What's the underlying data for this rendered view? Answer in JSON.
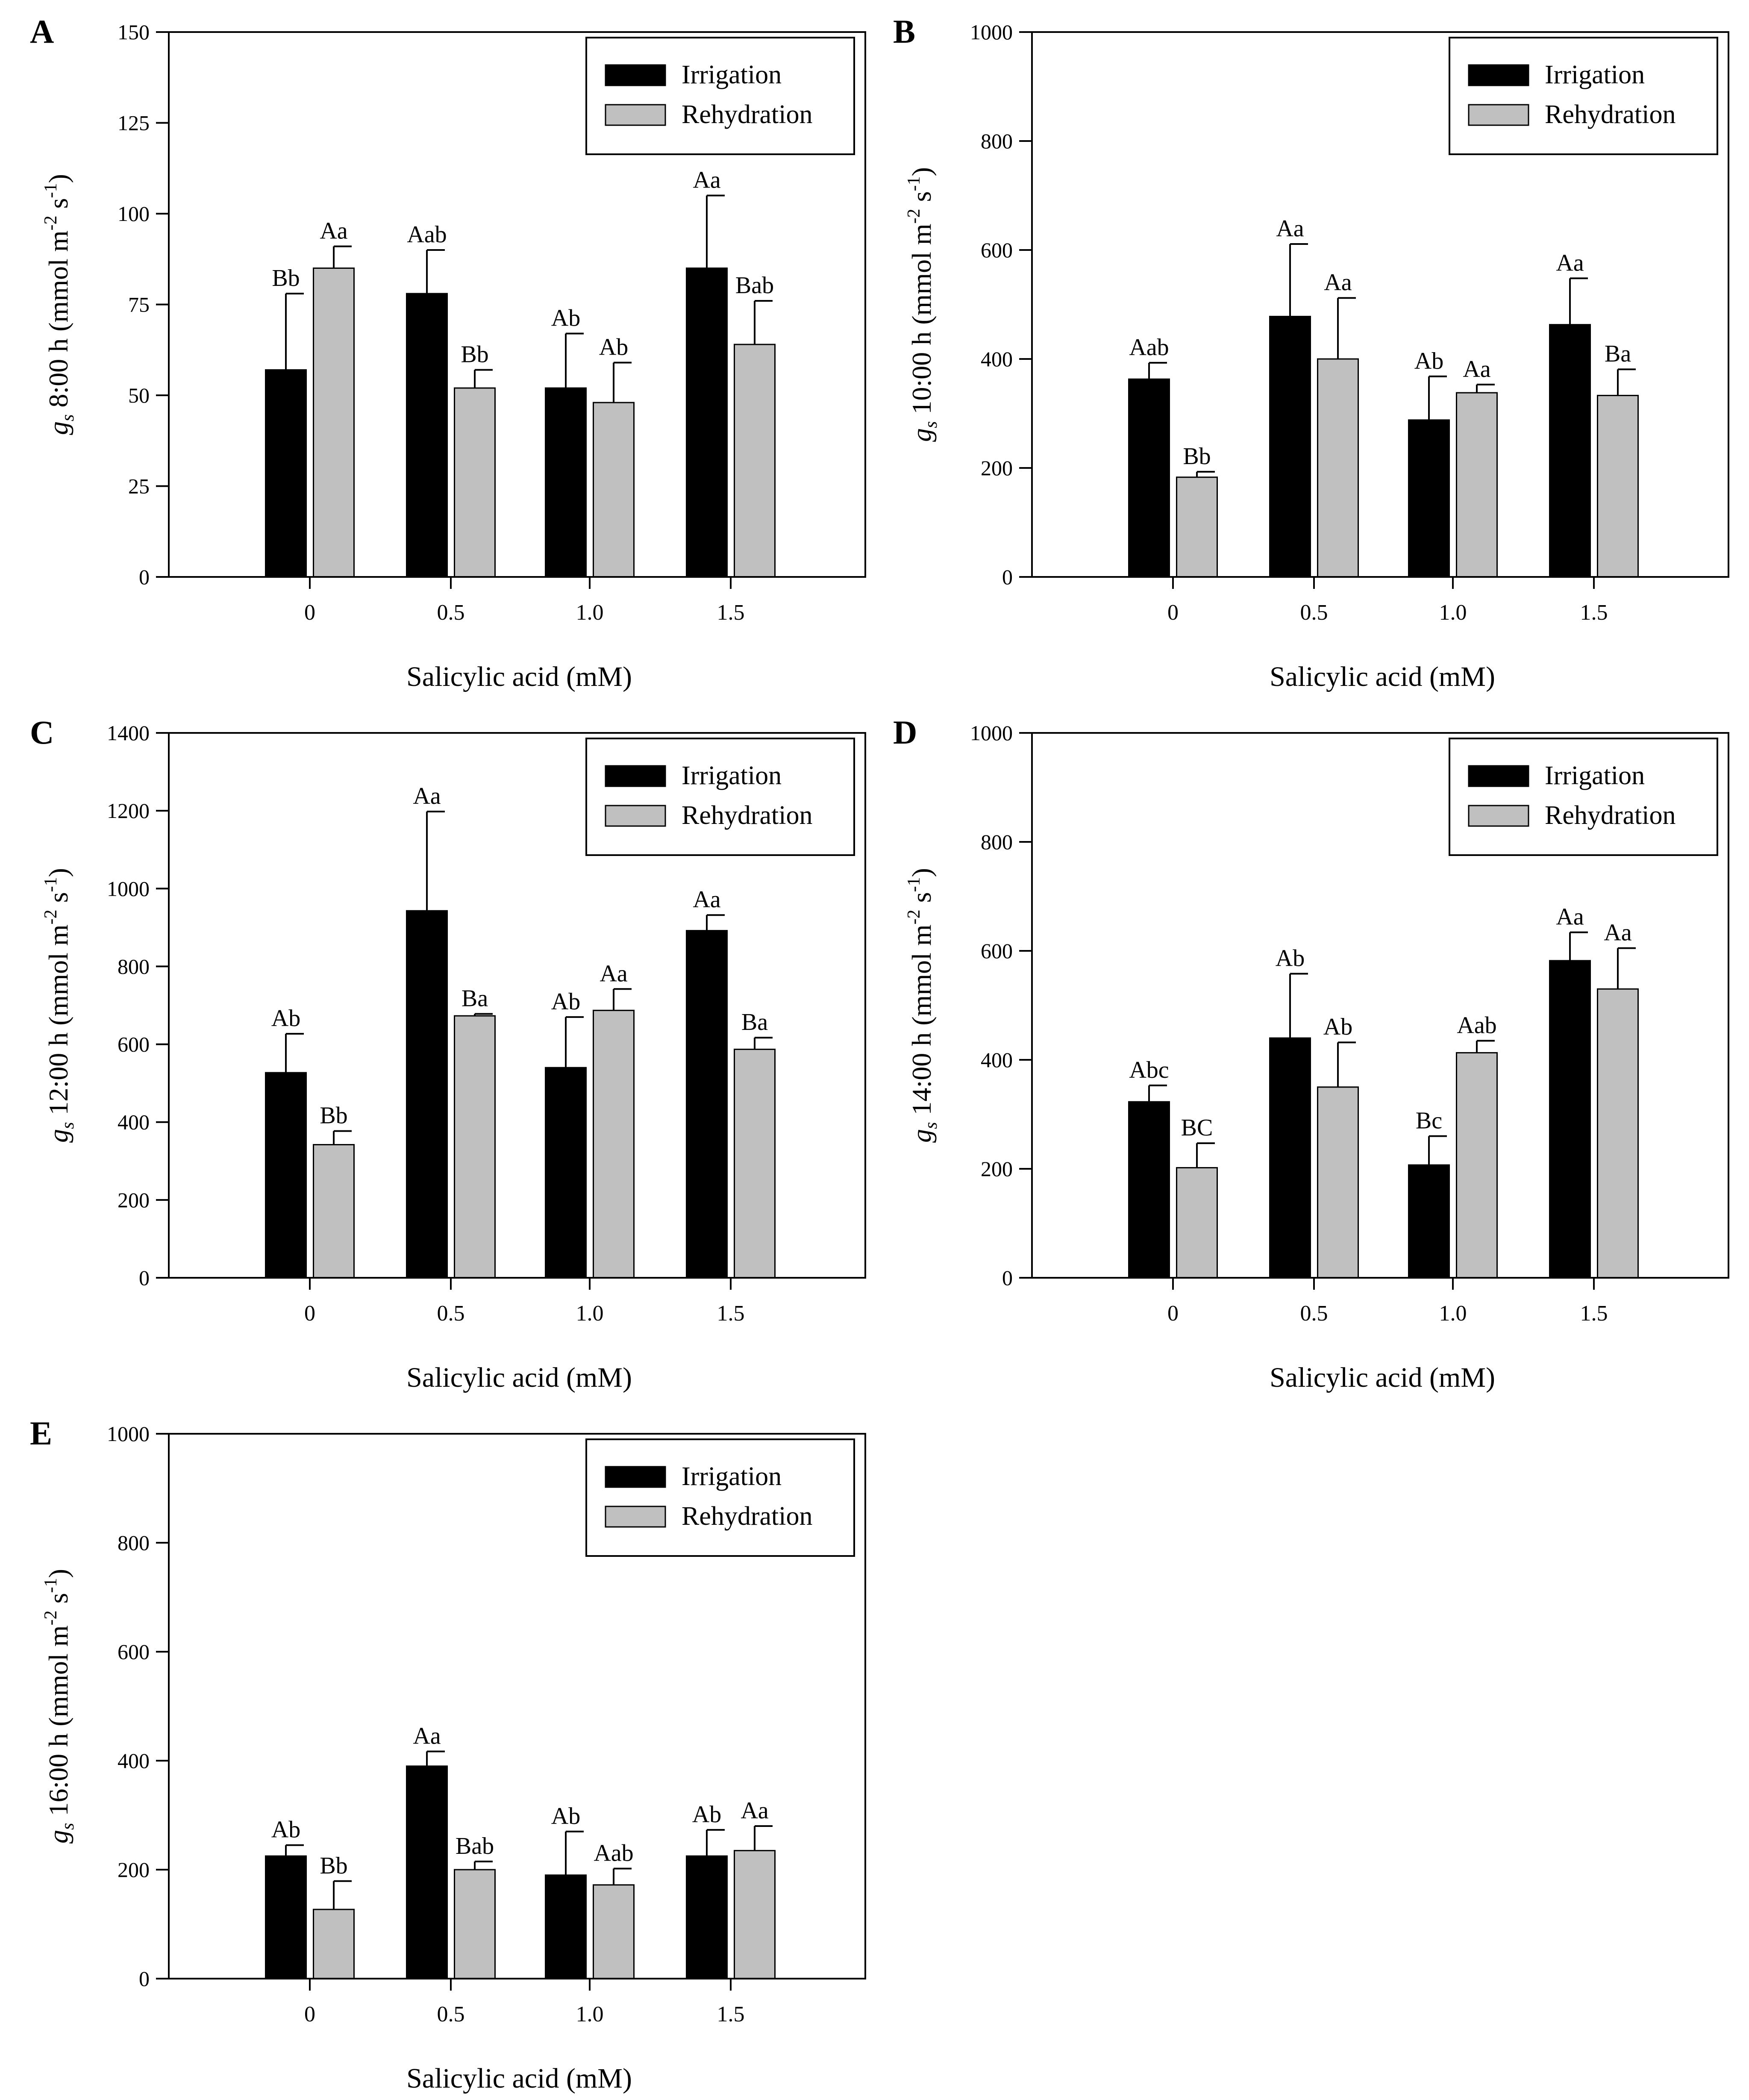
{
  "figure": {
    "legend": {
      "irrigation": "Irrigation",
      "rehydration": "Rehydration"
    },
    "colors": {
      "irrigation": "#000000",
      "rehydration": "#c0c0c0",
      "axis": "#000000"
    }
  },
  "chart_data": [
    {
      "panel": "A",
      "type": "bar",
      "ylabel": {
        "symbol": "g",
        "sub": "s",
        "time": "8:00 h",
        "unit": "(mmol m",
        "exp1": "-2",
        "mid": "s",
        "exp2": "-1",
        "close": ")"
      },
      "xlabel": "Salicylic acid (mM)",
      "categories": [
        "0",
        "0.5",
        "1.0",
        "1.5"
      ],
      "ylim": [
        0,
        150
      ],
      "yticks": [
        0,
        25,
        50,
        75,
        100,
        125,
        150
      ],
      "legend_position": "top-right",
      "series": [
        {
          "name": "Irrigation",
          "values": [
            57,
            78,
            52,
            85
          ],
          "errors": [
            21,
            12,
            15,
            20
          ],
          "labels": [
            "Bb",
            "Aab",
            "Ab",
            "Aa"
          ]
        },
        {
          "name": "Rehydration",
          "values": [
            85,
            52,
            48,
            64
          ],
          "errors": [
            6,
            5,
            11,
            12
          ],
          "labels": [
            "Aa",
            "Bb",
            "Ab",
            "Bab"
          ]
        }
      ]
    },
    {
      "panel": "B",
      "type": "bar",
      "ylabel": {
        "symbol": "g",
        "sub": "s",
        "time": "10:00 h",
        "unit": "(mmol m",
        "exp1": "-2",
        "mid": "s",
        "exp2": "-1",
        "close": ")"
      },
      "xlabel": "Salicylic acid (mM)",
      "categories": [
        "0",
        "0.5",
        "1.0",
        "1.5"
      ],
      "ylim": [
        0,
        1000
      ],
      "yticks": [
        0,
        200,
        400,
        600,
        800,
        1000
      ],
      "legend_position": "top-right",
      "series": [
        {
          "name": "Irrigation",
          "values": [
            363,
            478,
            288,
            463
          ],
          "errors": [
            30,
            133,
            80,
            85
          ],
          "labels": [
            "Aab",
            "Aa",
            "Ab",
            "Aa"
          ]
        },
        {
          "name": "Rehydration",
          "values": [
            183,
            400,
            338,
            333
          ],
          "errors": [
            10,
            112,
            15,
            48
          ],
          "labels": [
            "Bb",
            "Aa",
            "Aa",
            "Ba"
          ]
        }
      ]
    },
    {
      "panel": "C",
      "type": "bar",
      "ylabel": {
        "symbol": "g",
        "sub": "s",
        "time": "12:00 h",
        "unit": "(mmol m",
        "exp1": "-2",
        "mid": "s",
        "exp2": "-1",
        "close": ")"
      },
      "xlabel": "Salicylic acid (mM)",
      "categories": [
        "0",
        "0.5",
        "1.0",
        "1.5"
      ],
      "ylim": [
        0,
        1400
      ],
      "yticks": [
        0,
        200,
        400,
        600,
        800,
        1000,
        1200,
        1400
      ],
      "legend_position": "top-right",
      "series": [
        {
          "name": "Irrigation",
          "values": [
            527,
            943,
            540,
            892
          ],
          "errors": [
            100,
            255,
            130,
            40
          ],
          "labels": [
            "Ab",
            "Aa",
            "Ab",
            "Aa"
          ]
        },
        {
          "name": "Rehydration",
          "values": [
            342,
            673,
            687,
            587
          ],
          "errors": [
            35,
            5,
            55,
            30
          ],
          "labels": [
            "Bb",
            "Ba",
            "Aa",
            "Ba"
          ]
        }
      ]
    },
    {
      "panel": "D",
      "type": "bar",
      "ylabel": {
        "symbol": "g",
        "sub": "s",
        "time": "14:00 h",
        "unit": "(mmol m",
        "exp1": "-2",
        "mid": "s",
        "exp2": "-1",
        "close": ")"
      },
      "xlabel": "Salicylic acid (mM)",
      "categories": [
        "0",
        "0.5",
        "1.0",
        "1.5"
      ],
      "ylim": [
        0,
        1000
      ],
      "yticks": [
        0,
        200,
        400,
        600,
        800,
        1000
      ],
      "legend_position": "top-right",
      "series": [
        {
          "name": "Irrigation",
          "values": [
            323,
            440,
            207,
            582
          ],
          "errors": [
            30,
            118,
            53,
            52
          ],
          "labels": [
            "Abc",
            "Ab",
            "Bc",
            "Aa"
          ]
        },
        {
          "name": "Rehydration",
          "values": [
            202,
            350,
            413,
            530
          ],
          "errors": [
            45,
            82,
            22,
            75
          ],
          "labels": [
            "BC",
            "Ab",
            "Aab",
            "Aa"
          ]
        }
      ]
    },
    {
      "panel": "E",
      "type": "bar",
      "ylabel": {
        "symbol": "g",
        "sub": "s",
        "time": "16:00 h",
        "unit": "(mmol m",
        "exp1": "-2",
        "mid": "s",
        "exp2": "-1",
        "close": ")"
      },
      "xlabel": "Salicylic acid (mM)",
      "categories": [
        "0",
        "0.5",
        "1.0",
        "1.5"
      ],
      "ylim": [
        0,
        1000
      ],
      "yticks": [
        0,
        200,
        400,
        600,
        800,
        1000
      ],
      "legend_position": "top-right",
      "series": [
        {
          "name": "Irrigation",
          "values": [
            225,
            390,
            190,
            225
          ],
          "errors": [
            20,
            27,
            80,
            48
          ],
          "labels": [
            "Ab",
            "Aa",
            "Ab",
            "Ab"
          ]
        },
        {
          "name": "Rehydration",
          "values": [
            127,
            200,
            172,
            235
          ],
          "errors": [
            52,
            15,
            30,
            45
          ],
          "labels": [
            "Bb",
            "Bab",
            "Aab",
            "Aa"
          ]
        }
      ]
    }
  ]
}
